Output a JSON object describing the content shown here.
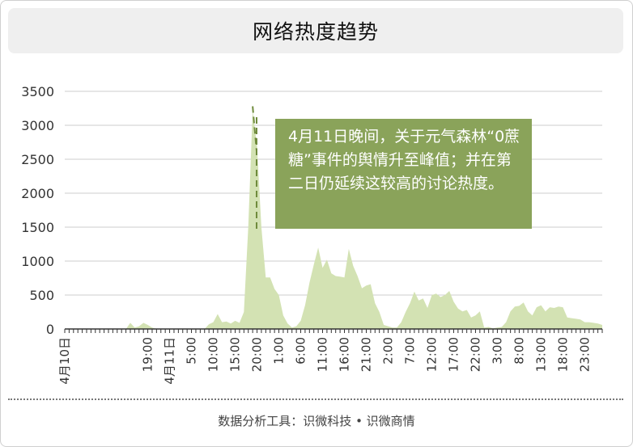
{
  "title": "网络热度趋势",
  "annotation": "4月11日晚间，关于元气森林“0蔗糖”事件的舆情升至峰值；并在第二日仍延续这较高的讨论热度。",
  "footer": "数据分析工具：识微科技 • 识微商情",
  "colors": {
    "fill": "#d3e2b3",
    "annotation_bg": "#8aa35a",
    "dash": "#6f8b3c",
    "grid": "#cccccc"
  },
  "chart_data": {
    "type": "area",
    "y_ticks": [
      0,
      500,
      1000,
      1500,
      2000,
      2500,
      3000,
      3500
    ],
    "ylim": [
      0,
      3500
    ],
    "x_tick_labels": [
      "4月10日",
      "19:00",
      "4月11日",
      "5:00",
      "10:00",
      "15:00",
      "20:00",
      "1:00",
      "6:00",
      "11:00",
      "16:00",
      "21:00",
      "2:00",
      "7:00",
      "12:00",
      "17:00",
      "22:00",
      "3:00",
      "8:00",
      "13:00",
      "18:00",
      "23:00"
    ],
    "x_tick_hours": [
      0,
      19,
      24,
      29,
      34,
      39,
      44,
      49,
      54,
      59,
      64,
      69,
      74,
      79,
      84,
      89,
      94,
      99,
      104,
      109,
      114,
      119
    ],
    "x_hour_range": [
      0,
      123
    ],
    "x_start": "4月10日 0:00",
    "points": [
      [
        0,
        0
      ],
      [
        14,
        0
      ],
      [
        15,
        90
      ],
      [
        16,
        20
      ],
      [
        17,
        40
      ],
      [
        18,
        90
      ],
      [
        19,
        60
      ],
      [
        20,
        20
      ],
      [
        21,
        0
      ],
      [
        32,
        0
      ],
      [
        33,
        70
      ],
      [
        34,
        100
      ],
      [
        35,
        220
      ],
      [
        36,
        100
      ],
      [
        37,
        110
      ],
      [
        38,
        80
      ],
      [
        39,
        120
      ],
      [
        40,
        90
      ],
      [
        41,
        250
      ],
      [
        42,
        1500
      ],
      [
        43,
        3220
      ],
      [
        44,
        2700
      ],
      [
        45,
        1500
      ],
      [
        46,
        760
      ],
      [
        47,
        760
      ],
      [
        48,
        590
      ],
      [
        49,
        500
      ],
      [
        50,
        200
      ],
      [
        51,
        80
      ],
      [
        52,
        20
      ],
      [
        53,
        40
      ],
      [
        54,
        120
      ],
      [
        55,
        350
      ],
      [
        56,
        680
      ],
      [
        57,
        950
      ],
      [
        58,
        1200
      ],
      [
        59,
        900
      ],
      [
        60,
        1020
      ],
      [
        61,
        820
      ],
      [
        62,
        780
      ],
      [
        63,
        770
      ],
      [
        64,
        760
      ],
      [
        65,
        1180
      ],
      [
        66,
        930
      ],
      [
        67,
        780
      ],
      [
        68,
        600
      ],
      [
        69,
        640
      ],
      [
        70,
        660
      ],
      [
        71,
        380
      ],
      [
        72,
        250
      ],
      [
        73,
        60
      ],
      [
        74,
        40
      ],
      [
        75,
        20
      ],
      [
        76,
        20
      ],
      [
        77,
        100
      ],
      [
        78,
        250
      ],
      [
        79,
        380
      ],
      [
        80,
        550
      ],
      [
        81,
        420
      ],
      [
        82,
        450
      ],
      [
        83,
        310
      ],
      [
        84,
        500
      ],
      [
        85,
        520
      ],
      [
        86,
        470
      ],
      [
        87,
        500
      ],
      [
        88,
        560
      ],
      [
        89,
        400
      ],
      [
        90,
        300
      ],
      [
        91,
        260
      ],
      [
        92,
        280
      ],
      [
        93,
        170
      ],
      [
        94,
        200
      ],
      [
        95,
        260
      ],
      [
        96,
        20
      ],
      [
        97,
        30
      ],
      [
        98,
        10
      ],
      [
        99,
        20
      ],
      [
        100,
        30
      ],
      [
        101,
        100
      ],
      [
        102,
        260
      ],
      [
        103,
        330
      ],
      [
        104,
        340
      ],
      [
        105,
        390
      ],
      [
        106,
        260
      ],
      [
        107,
        200
      ],
      [
        108,
        320
      ],
      [
        109,
        350
      ],
      [
        110,
        260
      ],
      [
        111,
        320
      ],
      [
        112,
        310
      ],
      [
        113,
        330
      ],
      [
        114,
        320
      ],
      [
        115,
        170
      ],
      [
        116,
        160
      ],
      [
        117,
        150
      ],
      [
        118,
        140
      ],
      [
        119,
        100
      ],
      [
        120,
        100
      ],
      [
        121,
        90
      ],
      [
        122,
        80
      ],
      [
        123,
        60
      ]
    ]
  }
}
